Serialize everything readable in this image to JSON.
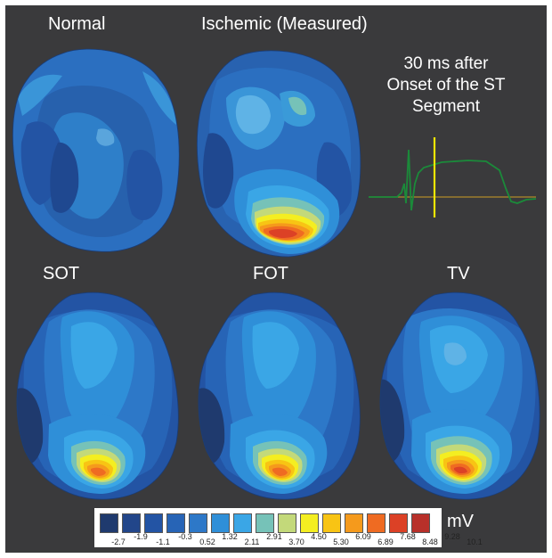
{
  "panels": {
    "normal": {
      "title": "Normal"
    },
    "ischemic": {
      "title": "Ischemic (Measured)"
    },
    "sot": {
      "title": "SOT"
    },
    "fot": {
      "title": "FOT"
    },
    "tv": {
      "title": "TV"
    }
  },
  "annotation": {
    "line1": "30 ms after",
    "line2": "Onset of the ST",
    "line3": "Segment"
  },
  "colorbar": {
    "unit": "mV",
    "upper_ticks": [
      "-1.9",
      "-0.3",
      "1.32",
      "2.91",
      "4.50",
      "6.09",
      "7.68",
      "9.28"
    ],
    "lower_ticks": [
      "-2.7",
      "-1.1",
      "0.52",
      "2.11",
      "3.70",
      "5.30",
      "6.89",
      "8.48",
      "10.1"
    ],
    "colors": [
      "#1f3a6e",
      "#22468a",
      "#2354a4",
      "#2764b6",
      "#2d78c8",
      "#2f8fd8",
      "#3aa6e6",
      "#76c2b8",
      "#c3d97a",
      "#f4ee21",
      "#f8c414",
      "#f59a1c",
      "#ef6b22",
      "#dc4126",
      "#b8302a"
    ]
  },
  "colors": {
    "background": "#3a3a3c",
    "trace_ecg": "#1b8a3a",
    "trace_marker": "#f2e600",
    "trace_baseline": "#b08a2a"
  }
}
